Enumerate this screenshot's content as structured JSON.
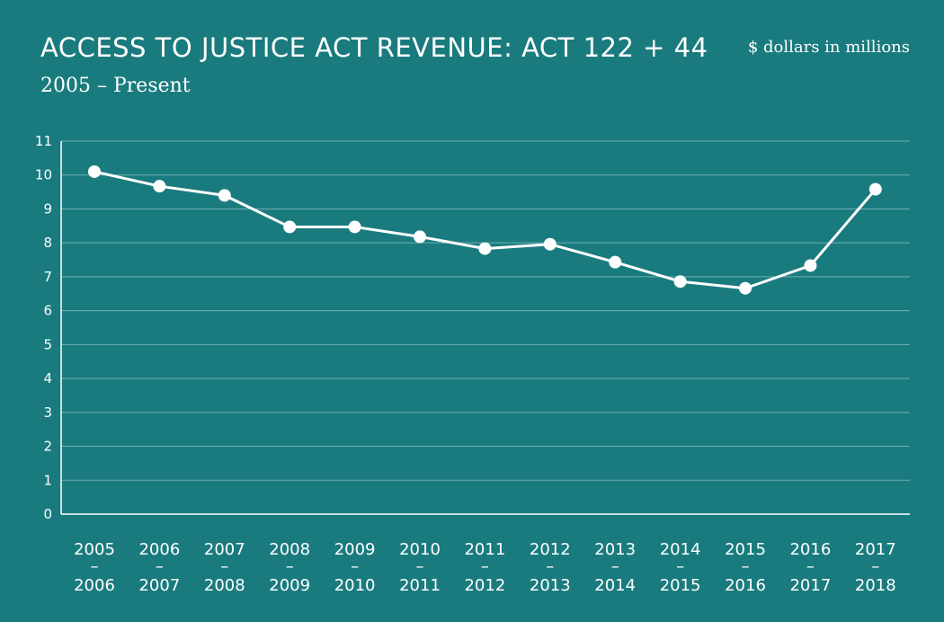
{
  "header": {
    "title": "ACCESS TO JUSTICE ACT REVENUE: ACT 122 + 44",
    "subtitle": "2005 – Present",
    "unit": "$ dollars in millions"
  },
  "colors": {
    "background": "#1a7b7e",
    "line": "#ffffff",
    "grid": "#6fb0b1"
  },
  "chart_data": {
    "type": "line",
    "title": "ACCESS TO JUSTICE ACT REVENUE: ACT 122 + 44",
    "subtitle": "2005 – Present",
    "ylabel": "",
    "xlabel": "",
    "ylim": [
      0,
      11
    ],
    "yticks": [
      "0",
      "1",
      "2",
      "3",
      "4",
      "5",
      "6",
      "7",
      "8",
      "9",
      "10",
      "11"
    ],
    "grid": true,
    "categories": [
      [
        "2005",
        "–",
        "2006"
      ],
      [
        "2006",
        "–",
        "2007"
      ],
      [
        "2007",
        "–",
        "2008"
      ],
      [
        "2008",
        "–",
        "2009"
      ],
      [
        "2009",
        "–",
        "2010"
      ],
      [
        "2010",
        "–",
        "2011"
      ],
      [
        "2011",
        "–",
        "2012"
      ],
      [
        "2012",
        "–",
        "2013"
      ],
      [
        "2013",
        "–",
        "2014"
      ],
      [
        "2014",
        "–",
        "2015"
      ],
      [
        "2015",
        "–",
        "2016"
      ],
      [
        "2016",
        "–",
        "2017"
      ],
      [
        "2017",
        "–",
        "2018"
      ]
    ],
    "values": [
      10.1,
      9.67,
      9.4,
      8.47,
      8.47,
      8.18,
      7.83,
      7.96,
      7.43,
      6.86,
      6.66,
      7.33,
      9.58
    ]
  }
}
